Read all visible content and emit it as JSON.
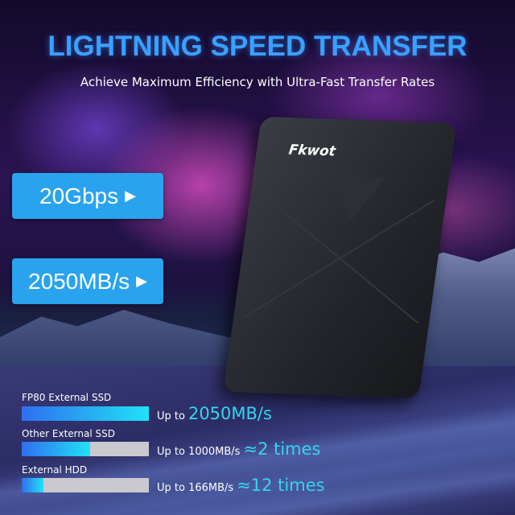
{
  "header": {
    "title": "LIGHTNING SPEED TRANSFER",
    "subtitle": "Achieve Maximum Efficiency with Ultra-Fast Transfer Rates"
  },
  "badges": [
    {
      "label": "20Gbps",
      "icon": "play-triangle-icon"
    },
    {
      "label": "2050MB/s",
      "icon": "play-triangle-icon"
    }
  ],
  "product": {
    "logo": "Fkwot"
  },
  "comparison": [
    {
      "name": "FP80 External SSD",
      "speed_text": "Up to",
      "highlight": "2050MB/s",
      "speed_mbps": 2050,
      "fill": 1.0
    },
    {
      "name": "Other External SSD",
      "speed_text": "Up to 1000MB/s",
      "highlight": "≈2 times",
      "speed_mbps": 1000,
      "fill": 0.54
    },
    {
      "name": "External HDD",
      "speed_text": "Up to 166MB/s",
      "highlight": "≈12 times",
      "speed_mbps": 166,
      "fill": 0.17
    }
  ],
  "colors": {
    "title": "#3aa0ff",
    "badge": "#29a3ee",
    "highlight": "#33d6ee",
    "bar_start": "#2f6ff0",
    "bar_end": "#20e2f6",
    "bar_track": "#c9c9cf"
  }
}
